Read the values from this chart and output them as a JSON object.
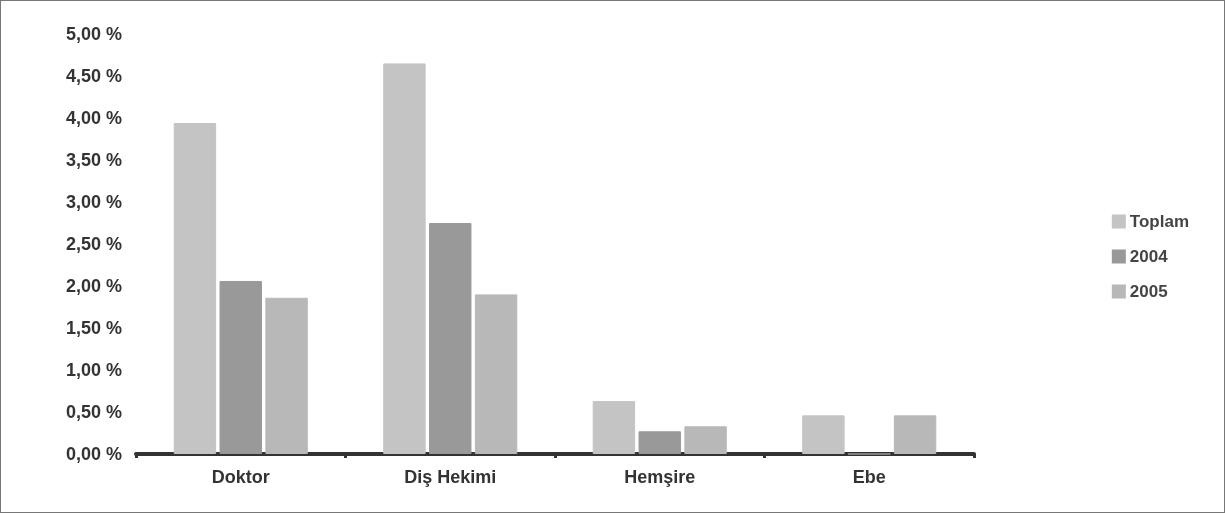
{
  "chart_data": {
    "type": "bar",
    "categories": [
      "Doktor",
      "Diş Hekimi",
      "Hemşire",
      "Ebe"
    ],
    "series": [
      {
        "name": "Toplam",
        "color": "#c4c4c4",
        "values": [
          3.94,
          4.65,
          0.63,
          0.46
        ]
      },
      {
        "name": "2004",
        "color": "#999999",
        "values": [
          2.06,
          2.75,
          0.27,
          0
        ]
      },
      {
        "name": "2005",
        "color": "#b8b8b8",
        "values": [
          1.86,
          1.9,
          0.33,
          0.46
        ]
      }
    ],
    "ylim": [
      0,
      5
    ],
    "yticks": [
      {
        "value": 0,
        "label": "0,00 %"
      },
      {
        "value": 0.5,
        "label": "0,50 %"
      },
      {
        "value": 1,
        "label": "1,00 %"
      },
      {
        "value": 1.5,
        "label": "1,50 %"
      },
      {
        "value": 2,
        "label": "2,00 %"
      },
      {
        "value": 2.5,
        "label": "2,50 %"
      },
      {
        "value": 3,
        "label": "3,00 %"
      },
      {
        "value": 3.5,
        "label": "3,50 %"
      },
      {
        "value": 4,
        "label": "4,00 %"
      },
      {
        "value": 4.5,
        "label": "4,50 %"
      },
      {
        "value": 5,
        "label": "5,00 %"
      }
    ],
    "grid": false,
    "legend": "right"
  }
}
